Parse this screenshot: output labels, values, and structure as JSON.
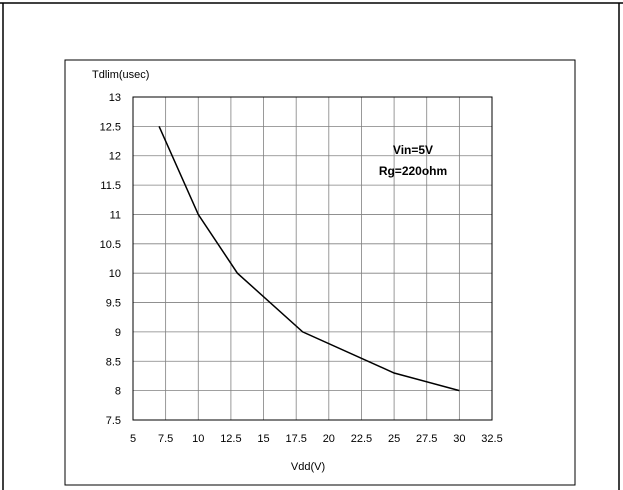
{
  "chart_data": {
    "type": "line",
    "ylabel": "Tdlim(usec)",
    "xlabel": "Vdd(V)",
    "xlim": [
      5,
      32.5
    ],
    "ylim": [
      7.5,
      13
    ],
    "x_ticks": [
      "5",
      "7.5",
      "10",
      "12.5",
      "15",
      "17.5",
      "20",
      "22.5",
      "25",
      "27.5",
      "30",
      "32.5"
    ],
    "y_ticks": [
      "7.5",
      "8",
      "8.5",
      "9",
      "9.5",
      "10",
      "10.5",
      "11",
      "11.5",
      "12",
      "12.5",
      "13"
    ],
    "grid": true,
    "annotations": [
      "Vin=5V",
      "Rg=220ohm"
    ],
    "series": [
      {
        "x": [
          7,
          10,
          13,
          18,
          25,
          30
        ],
        "y": [
          12.5,
          11,
          10,
          9,
          8.3,
          8
        ]
      }
    ],
    "colors": {
      "line": "#000000",
      "grid": "#808080"
    }
  }
}
